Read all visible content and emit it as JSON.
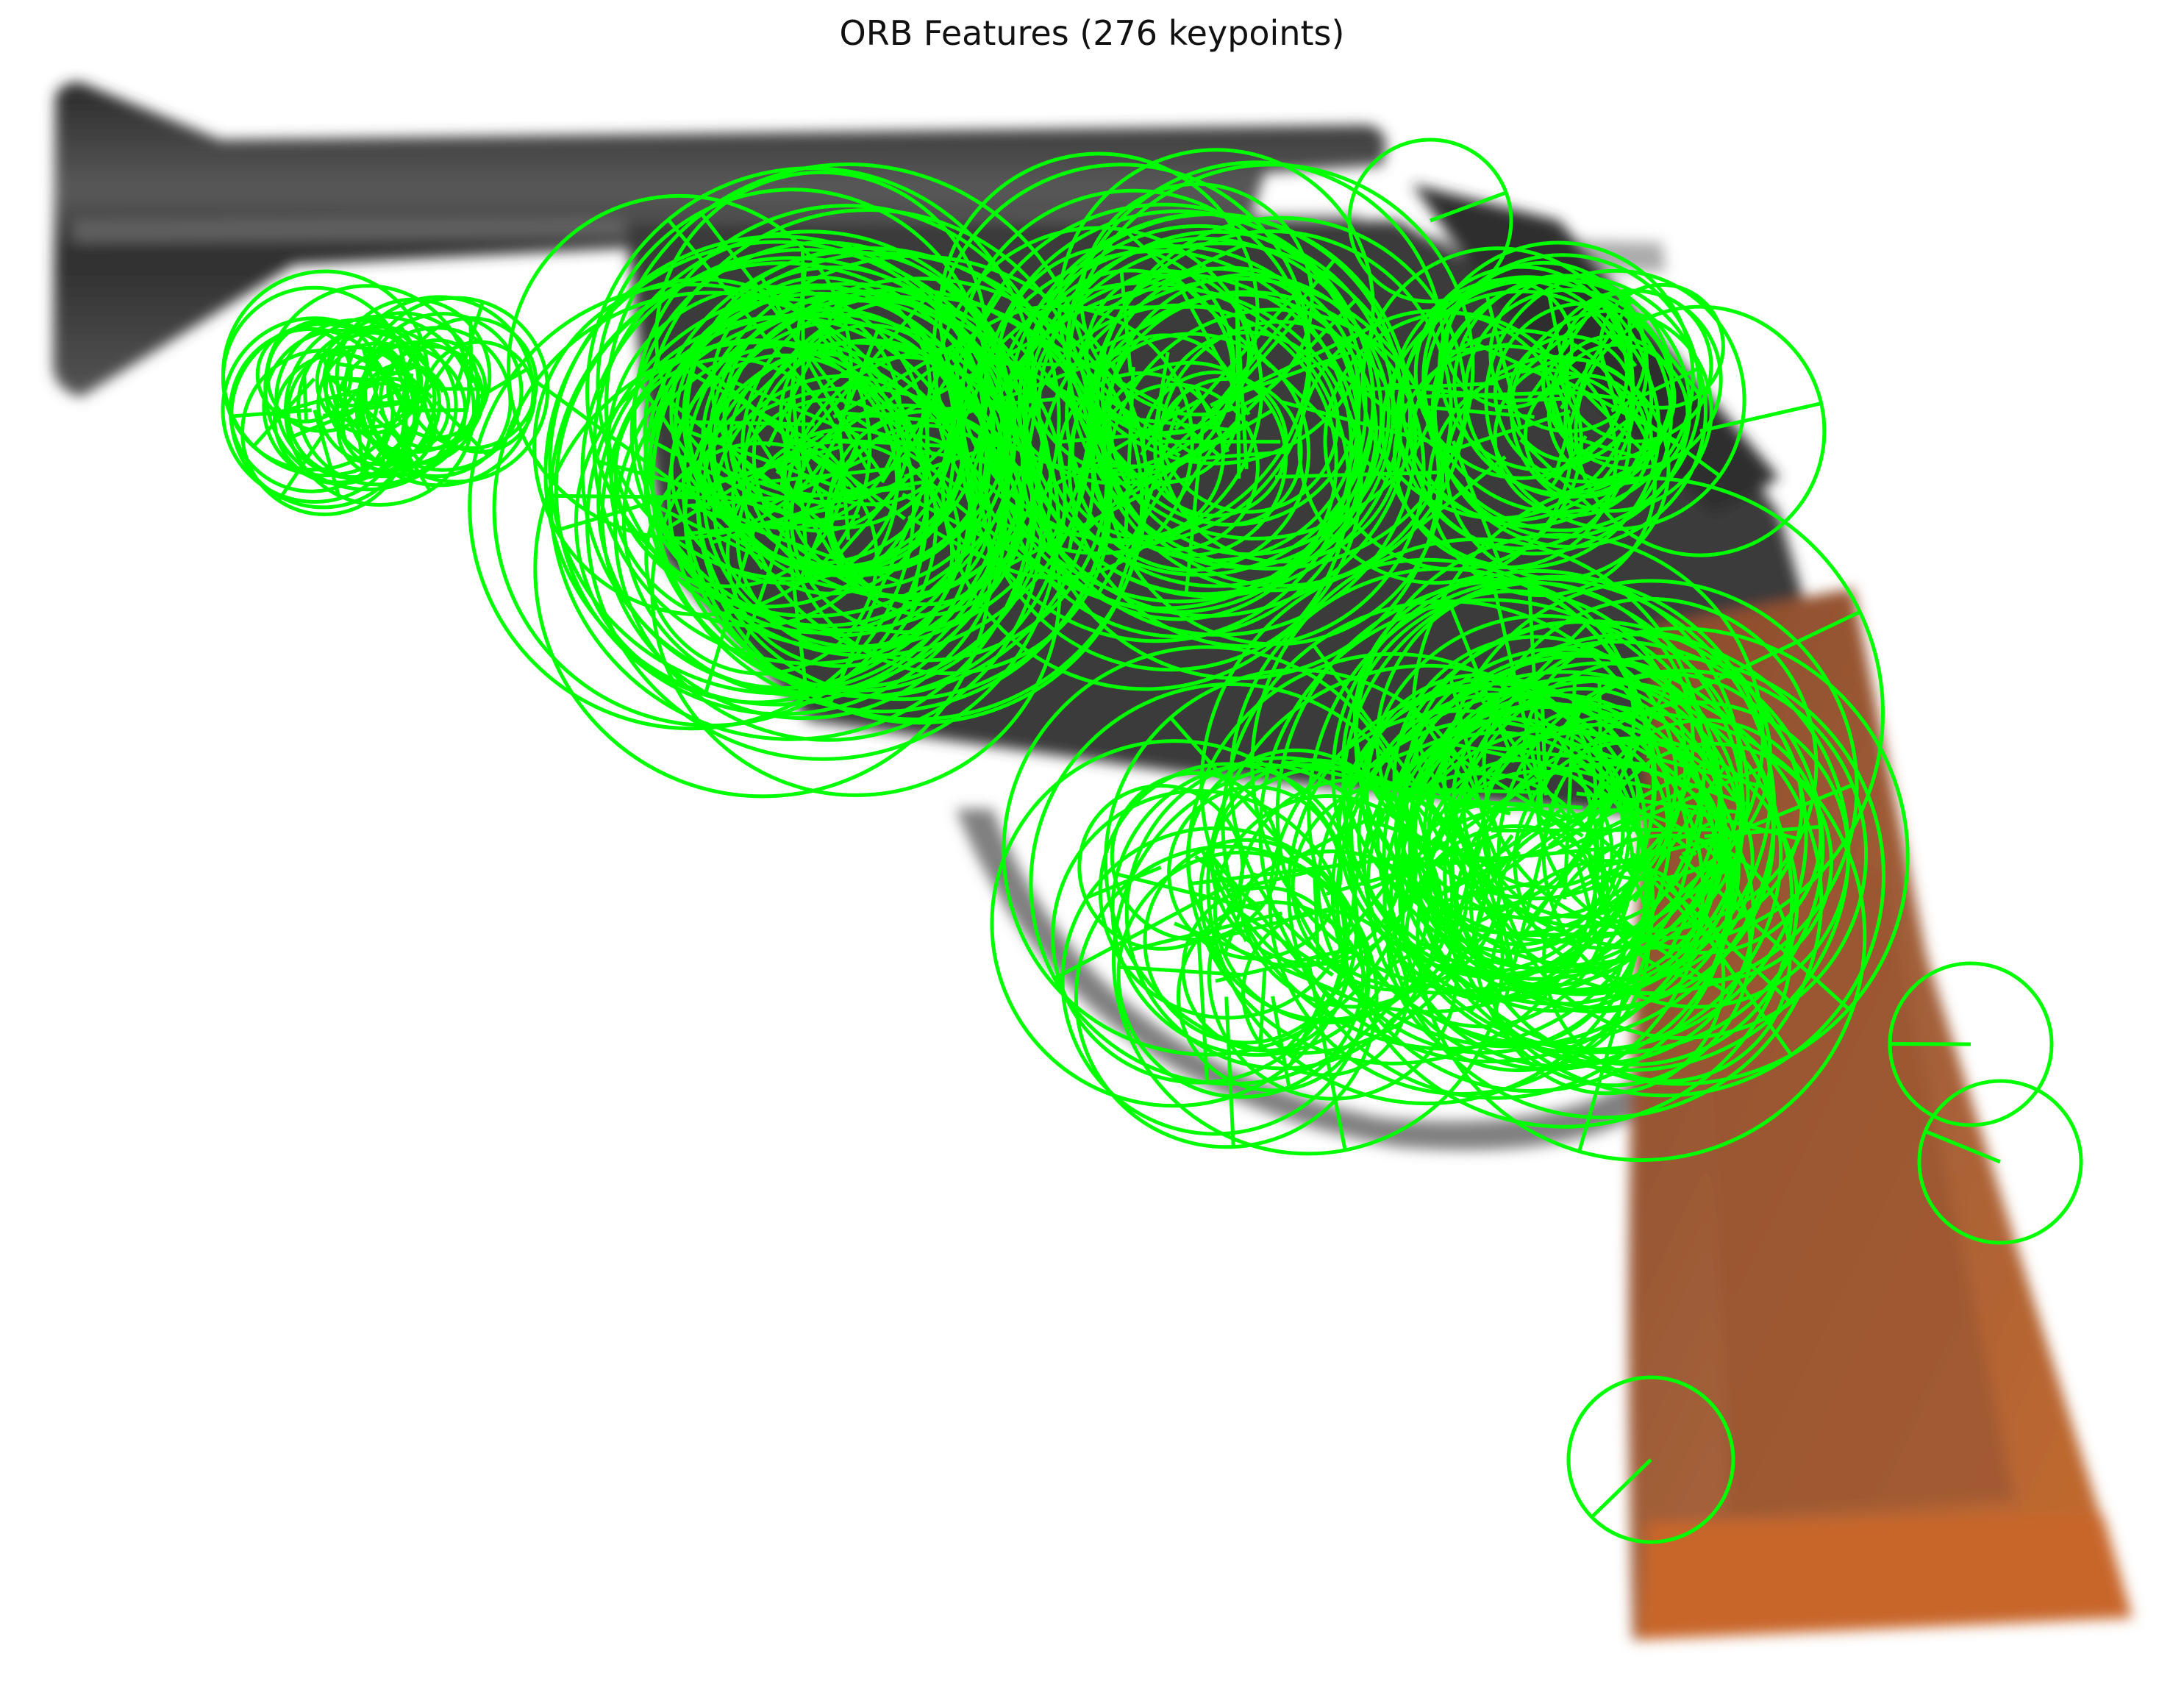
{
  "figure": {
    "title": "ORB Features (276 keypoints)"
  },
  "overlay": {
    "keypoint_color": "#00ff00",
    "keypoint_count": 276
  },
  "photo": {
    "subject_icon": "revolver-icon",
    "colors": {
      "barrel": "#3a3a3a",
      "barrel_highlight": "#777777",
      "grip": "#a05a35",
      "grip_light": "#c27040",
      "grip_dark": "#7a4022",
      "background": "#ffffff"
    }
  }
}
